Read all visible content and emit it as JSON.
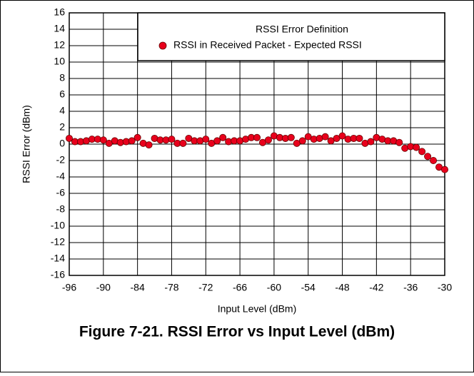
{
  "chart_data": {
    "type": "scatter",
    "title": "Figure 7-21. RSSI Error vs Input Level (dBm)",
    "xlabel": "Input Level (dBm)",
    "ylabel": "RSSI Error (dBm)",
    "legend_title": "RSSI Error Definition",
    "legend": "upper right",
    "grid": true,
    "xlim": [
      -96,
      -30
    ],
    "xticks": [
      -96,
      -90,
      -84,
      -78,
      -72,
      -66,
      -60,
      -54,
      -48,
      -42,
      -36,
      -30
    ],
    "ylim": [
      -16,
      16
    ],
    "yticks": [
      -16,
      -14,
      -12,
      -10,
      -8,
      -6,
      -4,
      -2,
      0,
      2,
      4,
      6,
      8,
      10,
      12,
      14,
      16
    ],
    "x": [
      -96,
      -95,
      -94,
      -93,
      -92,
      -91,
      -90,
      -89,
      -88,
      -87,
      -86,
      -85,
      -84,
      -83,
      -82,
      -81,
      -80,
      -79,
      -78,
      -77,
      -76,
      -75,
      -74,
      -73,
      -72,
      -71,
      -70,
      -69,
      -68,
      -67,
      -66,
      -65,
      -64,
      -63,
      -62,
      -61,
      -60,
      -59,
      -58,
      -57,
      -56,
      -55,
      -54,
      -53,
      -52,
      -51,
      -50,
      -49,
      -48,
      -47,
      -46,
      -45,
      -44,
      -43,
      -42,
      -41,
      -40,
      -39,
      -38,
      -37,
      -36,
      -35,
      -34,
      -33,
      -32,
      -31,
      -30
    ],
    "series": [
      {
        "name": "RSSI in Received Packet - Expected RSSI",
        "color": "#e8001c",
        "values": [
          0.7,
          0.3,
          0.3,
          0.4,
          0.6,
          0.6,
          0.5,
          0.1,
          0.4,
          0.2,
          0.3,
          0.4,
          0.8,
          0.1,
          -0.1,
          0.7,
          0.5,
          0.5,
          0.6,
          0.1,
          0.1,
          0.7,
          0.4,
          0.4,
          0.6,
          0.1,
          0.4,
          0.8,
          0.3,
          0.4,
          0.4,
          0.6,
          0.8,
          0.8,
          0.2,
          0.5,
          1.0,
          0.8,
          0.7,
          0.8,
          0.1,
          0.4,
          0.9,
          0.6,
          0.7,
          0.9,
          0.4,
          0.7,
          1.0,
          0.6,
          0.7,
          0.7,
          0.1,
          0.3,
          0.8,
          0.6,
          0.4,
          0.4,
          0.2,
          -0.5,
          -0.3,
          -0.4,
          -0.9,
          -1.5,
          -2.0,
          -2.8,
          -3.1
        ]
      }
    ]
  }
}
